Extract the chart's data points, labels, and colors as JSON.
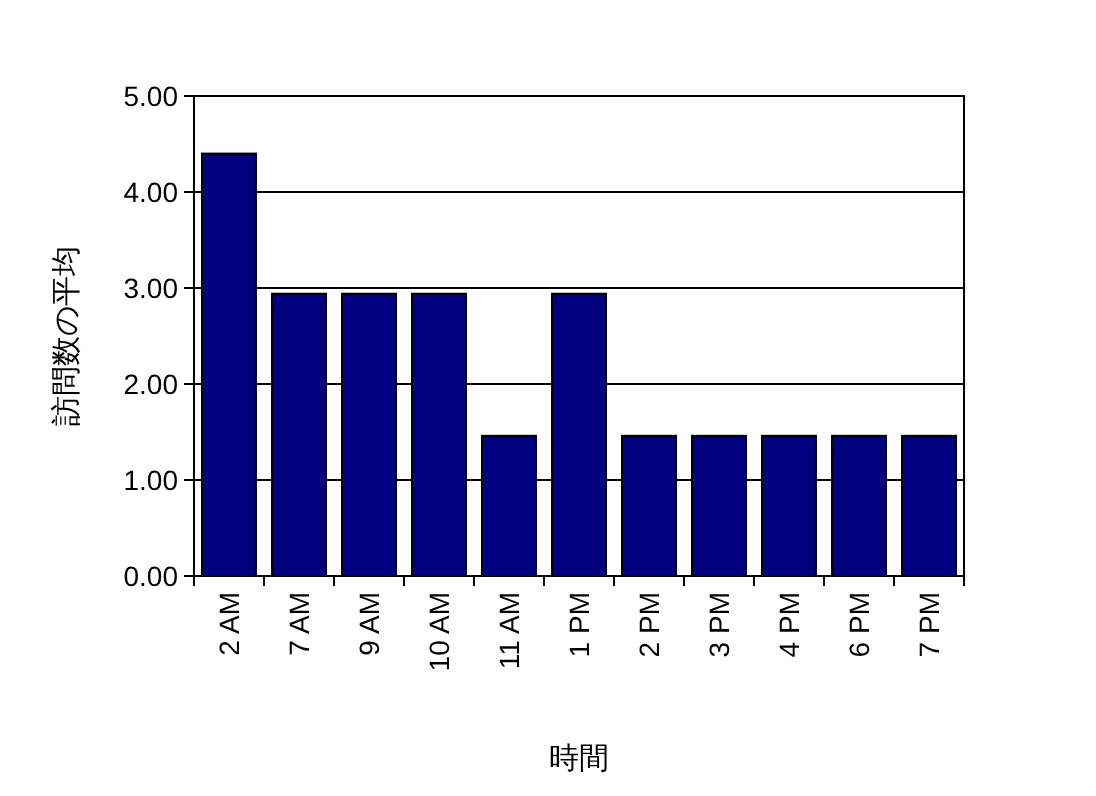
{
  "chart_data": {
    "type": "bar",
    "xlabel": "時間",
    "ylabel": "訪問数の平均",
    "categories": [
      "2 AM",
      "7 AM",
      "9 AM",
      "10 AM",
      "11 AM",
      "1 PM",
      "2 PM",
      "3 PM",
      "4 PM",
      "6 PM",
      "7 PM"
    ],
    "values": [
      4.4,
      2.94,
      2.94,
      2.94,
      1.46,
      2.94,
      1.46,
      1.46,
      1.46,
      1.46,
      1.46
    ],
    "color": "#000080",
    "ylim": [
      0,
      5
    ],
    "yticks": [
      {
        "value": 0,
        "label": "0.00"
      },
      {
        "value": 1,
        "label": "1.00"
      },
      {
        "value": 2,
        "label": "2.00"
      },
      {
        "value": 3,
        "label": "3.00"
      },
      {
        "value": 4,
        "label": "4.00"
      },
      {
        "value": 5,
        "label": "5.00"
      }
    ],
    "grid": "y"
  }
}
